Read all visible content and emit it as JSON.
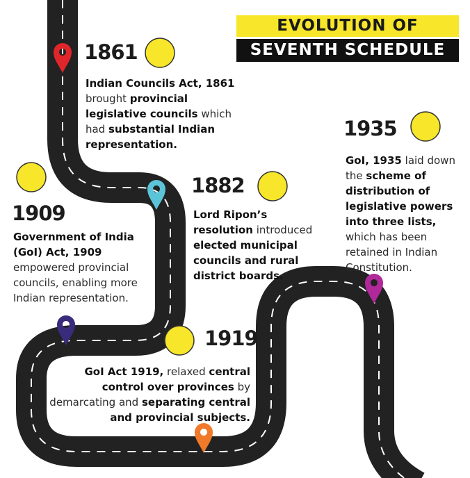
{
  "header": {
    "title_line1": "EVOLUTION OF",
    "title_line2": "SEVENTH SCHEDULE"
  },
  "milestones": [
    {
      "year": "1861",
      "segments": [
        {
          "bold": "Indian Councils Act, 1861"
        },
        {
          "regular": "brought"
        },
        {
          "bold": "provincial legislative councils"
        },
        {
          "regular": "which had"
        },
        {
          "bold": "substantial Indian representation."
        }
      ]
    },
    {
      "year": "1935",
      "segments": [
        {
          "bold": "GoI, 1935"
        },
        {
          "regular": "laid down the"
        },
        {
          "bold": "scheme of distribution of legislative powers into three lists,"
        },
        {
          "regular": "which has been retained in Indian Constitution."
        }
      ]
    },
    {
      "year": "1882",
      "segments": [
        {
          "bold": "Lord Ripon’s resolution"
        },
        {
          "regular": "introduced"
        },
        {
          "bold": "elected municipal councils and rural district boards."
        }
      ]
    },
    {
      "year": "1909",
      "segments": [
        {
          "bold": "Government of India (GoI) Act, 1909"
        },
        {
          "regular": "empowered provincial councils, enabling more Indian representation."
        }
      ]
    },
    {
      "year": "1919",
      "segments": [
        {
          "bold": "GoI Act 1919,"
        },
        {
          "regular": "relaxed"
        },
        {
          "bold": "central control over provinces"
        },
        {
          "regular": "by demarcating and"
        },
        {
          "bold": "separating central and provincial subjects."
        }
      ]
    }
  ]
}
